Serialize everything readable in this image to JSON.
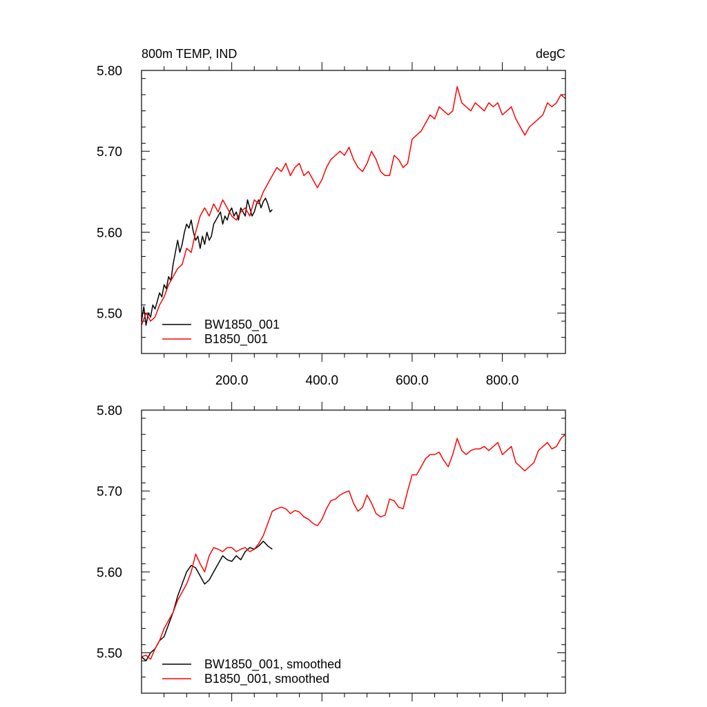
{
  "chart_data": [
    {
      "type": "line",
      "title": "800m TEMP, IND",
      "units": "degC",
      "xlim": [
        0,
        940
      ],
      "ylim": [
        5.45,
        5.8
      ],
      "xticks": [
        200,
        400,
        600,
        800
      ],
      "xtick_labels": [
        "200.0",
        "400.0",
        "600.0",
        "800.0"
      ],
      "yticks": [
        5.5,
        5.6,
        5.7,
        5.8
      ],
      "ytick_labels": [
        "5.50",
        "5.60",
        "5.70",
        "5.80"
      ],
      "legend_position": "bottom-left",
      "series": [
        {
          "name": "BW1850_001",
          "color": "#000000",
          "x": [
            0,
            5,
            10,
            15,
            20,
            25,
            30,
            35,
            40,
            45,
            50,
            55,
            60,
            65,
            70,
            75,
            80,
            85,
            90,
            95,
            100,
            105,
            110,
            115,
            120,
            125,
            130,
            135,
            140,
            145,
            150,
            155,
            160,
            165,
            170,
            175,
            180,
            185,
            190,
            195,
            200,
            205,
            210,
            215,
            220,
            225,
            230,
            235,
            240,
            245,
            250,
            255,
            260,
            265,
            270,
            275,
            280,
            285,
            290
          ],
          "values": [
            5.49,
            5.508,
            5.485,
            5.5,
            5.495,
            5.51,
            5.505,
            5.515,
            5.525,
            5.52,
            5.535,
            5.53,
            5.545,
            5.54,
            5.56,
            5.575,
            5.59,
            5.575,
            5.585,
            5.6,
            5.61,
            5.605,
            5.615,
            5.6,
            5.59,
            5.595,
            5.58,
            5.595,
            5.585,
            5.6,
            5.59,
            5.595,
            5.61,
            5.615,
            5.62,
            5.625,
            5.61,
            5.62,
            5.615,
            5.625,
            5.63,
            5.62,
            5.625,
            5.615,
            5.63,
            5.625,
            5.62,
            5.64,
            5.63,
            5.62,
            5.625,
            5.635,
            5.64,
            5.63,
            5.638,
            5.642,
            5.635,
            5.625,
            5.628
          ]
        },
        {
          "name": "B1850_001",
          "color": "#ff0000",
          "x": [
            0,
            10,
            20,
            30,
            40,
            50,
            60,
            70,
            80,
            90,
            100,
            110,
            120,
            130,
            140,
            150,
            160,
            170,
            180,
            190,
            200,
            210,
            220,
            230,
            240,
            250,
            260,
            270,
            280,
            290,
            300,
            310,
            320,
            330,
            340,
            350,
            360,
            370,
            380,
            390,
            400,
            410,
            420,
            430,
            440,
            450,
            460,
            470,
            480,
            490,
            500,
            510,
            520,
            530,
            540,
            550,
            560,
            570,
            580,
            590,
            600,
            610,
            620,
            630,
            640,
            650,
            660,
            670,
            680,
            690,
            700,
            710,
            720,
            730,
            740,
            750,
            760,
            770,
            780,
            790,
            800,
            810,
            820,
            830,
            840,
            850,
            860,
            870,
            880,
            890,
            900,
            910,
            920,
            930,
            940
          ],
          "values": [
            5.485,
            5.5,
            5.49,
            5.495,
            5.51,
            5.52,
            5.535,
            5.545,
            5.555,
            5.56,
            5.58,
            5.575,
            5.6,
            5.62,
            5.63,
            5.62,
            5.635,
            5.625,
            5.64,
            5.63,
            5.62,
            5.615,
            5.625,
            5.63,
            5.62,
            5.64,
            5.635,
            5.65,
            5.66,
            5.67,
            5.68,
            5.675,
            5.685,
            5.67,
            5.68,
            5.685,
            5.67,
            5.675,
            5.665,
            5.655,
            5.665,
            5.68,
            5.69,
            5.695,
            5.7,
            5.695,
            5.705,
            5.69,
            5.68,
            5.675,
            5.685,
            5.7,
            5.69,
            5.675,
            5.67,
            5.67,
            5.695,
            5.69,
            5.68,
            5.685,
            5.715,
            5.72,
            5.725,
            5.735,
            5.745,
            5.74,
            5.755,
            5.75,
            5.745,
            5.75,
            5.78,
            5.76,
            5.755,
            5.75,
            5.76,
            5.755,
            5.75,
            5.76,
            5.755,
            5.76,
            5.745,
            5.75,
            5.755,
            5.74,
            5.73,
            5.72,
            5.73,
            5.735,
            5.74,
            5.745,
            5.76,
            5.755,
            5.76,
            5.77,
            5.765
          ]
        }
      ]
    },
    {
      "type": "line",
      "xlim": [
        0,
        940
      ],
      "ylim": [
        5.45,
        5.8
      ],
      "yticks": [
        5.5,
        5.6,
        5.7,
        5.8
      ],
      "ytick_labels": [
        "5.50",
        "5.60",
        "5.70",
        "5.80"
      ],
      "legend_position": "bottom-left",
      "series": [
        {
          "name": "BW1850_001, smoothed",
          "color": "#000000",
          "x": [
            0,
            10,
            20,
            30,
            40,
            50,
            60,
            70,
            80,
            90,
            100,
            110,
            120,
            130,
            140,
            150,
            160,
            170,
            180,
            190,
            200,
            210,
            220,
            230,
            240,
            250,
            260,
            270,
            280,
            290
          ],
          "values": [
            5.495,
            5.49,
            5.5,
            5.505,
            5.515,
            5.52,
            5.535,
            5.55,
            5.57,
            5.585,
            5.6,
            5.608,
            5.605,
            5.595,
            5.585,
            5.59,
            5.6,
            5.61,
            5.62,
            5.615,
            5.613,
            5.62,
            5.615,
            5.625,
            5.63,
            5.628,
            5.632,
            5.638,
            5.632,
            5.628
          ]
        },
        {
          "name": "B1850_001, smoothed",
          "color": "#ff0000",
          "x": [
            0,
            10,
            20,
            30,
            40,
            50,
            60,
            70,
            80,
            90,
            100,
            110,
            120,
            130,
            140,
            150,
            160,
            170,
            180,
            190,
            200,
            210,
            220,
            230,
            240,
            250,
            260,
            270,
            280,
            290,
            300,
            310,
            320,
            330,
            340,
            350,
            360,
            370,
            380,
            390,
            400,
            410,
            420,
            430,
            440,
            450,
            460,
            470,
            480,
            490,
            500,
            510,
            520,
            530,
            540,
            550,
            560,
            570,
            580,
            590,
            600,
            610,
            620,
            630,
            640,
            650,
            660,
            670,
            680,
            690,
            700,
            710,
            720,
            730,
            740,
            750,
            760,
            770,
            780,
            790,
            800,
            810,
            820,
            830,
            840,
            850,
            860,
            870,
            880,
            890,
            900,
            910,
            920,
            930,
            940
          ],
          "values": [
            5.495,
            5.497,
            5.492,
            5.505,
            5.515,
            5.53,
            5.54,
            5.55,
            5.565,
            5.575,
            5.585,
            5.6,
            5.622,
            5.61,
            5.6,
            5.62,
            5.63,
            5.628,
            5.625,
            5.63,
            5.63,
            5.625,
            5.628,
            5.63,
            5.625,
            5.628,
            5.635,
            5.645,
            5.66,
            5.675,
            5.678,
            5.68,
            5.678,
            5.672,
            5.676,
            5.674,
            5.668,
            5.665,
            5.66,
            5.657,
            5.665,
            5.678,
            5.688,
            5.69,
            5.695,
            5.698,
            5.7,
            5.685,
            5.675,
            5.68,
            5.695,
            5.685,
            5.672,
            5.668,
            5.67,
            5.69,
            5.688,
            5.68,
            5.678,
            5.7,
            5.72,
            5.72,
            5.73,
            5.74,
            5.745,
            5.745,
            5.748,
            5.738,
            5.73,
            5.745,
            5.765,
            5.75,
            5.745,
            5.75,
            5.752,
            5.752,
            5.755,
            5.75,
            5.755,
            5.76,
            5.745,
            5.75,
            5.755,
            5.735,
            5.73,
            5.725,
            5.73,
            5.735,
            5.75,
            5.755,
            5.76,
            5.752,
            5.755,
            5.765,
            5.77
          ]
        }
      ]
    }
  ]
}
